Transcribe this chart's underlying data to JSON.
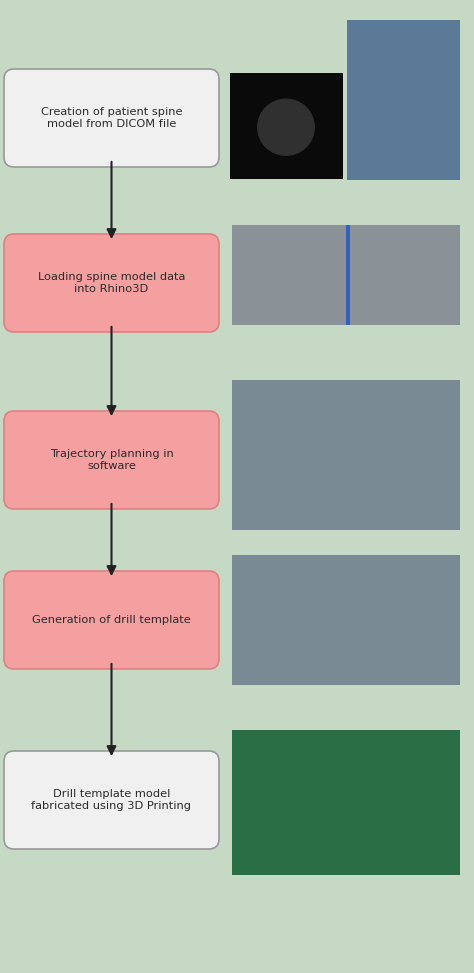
{
  "background_color": "#c5d9c5",
  "figure_width": 4.74,
  "figure_height": 9.73,
  "steps": [
    {
      "label": "Creation of patient spine\nmodel from DICOM file",
      "box_color": "#f0f0f0",
      "box_border": "#999999",
      "text_color": "#2a2a2a",
      "is_pink": false
    },
    {
      "label": "Loading spine model data\ninto Rhino3D",
      "box_color": "#f4a0a0",
      "box_border": "#e08080",
      "text_color": "#2a2a2a",
      "is_pink": true
    },
    {
      "label": "Trajectory planning in\nsoftware",
      "box_color": "#f4a0a0",
      "box_border": "#e08080",
      "text_color": "#2a2a2a",
      "is_pink": true
    },
    {
      "label": "Generation of drill template",
      "box_color": "#f4a0a0",
      "box_border": "#e08080",
      "text_color": "#2a2a2a",
      "is_pink": true
    },
    {
      "label": "Drill template model\nfabricated using 3D Printing",
      "box_color": "#f0f0f0",
      "box_border": "#999999",
      "text_color": "#2a2a2a",
      "is_pink": false
    }
  ],
  "arrow_color": "#222222",
  "img_colors": {
    "step1_left": "#0a0a0a",
    "step1_right": "#5a7a98",
    "step2": "#8a9298",
    "step3": "#7a8a95",
    "step4": "#7a8a95",
    "step5": "#2a6e45"
  }
}
